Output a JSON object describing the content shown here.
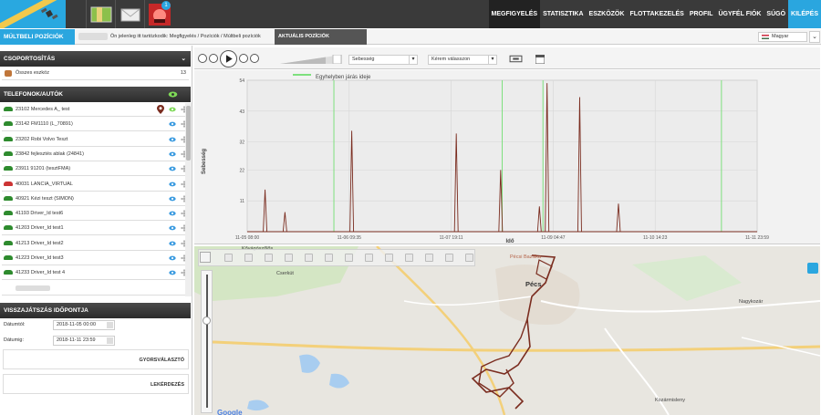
{
  "topbar": {
    "notification_count": "1",
    "nav": [
      "MEGFIGYELÉS",
      "STATISZTIKA",
      "ESZKÖZÖK",
      "FLOTTAKEZELÉS",
      "PROFIL",
      "ÜGYFÉL FIÓK",
      "SÚGÓ",
      "KILÉPÉS"
    ]
  },
  "crumbbar": {
    "title": "MÚLTBELI POZÍCIÓK",
    "breadcrumb": "Ön jelenleg itt tartózkodik: Megfigyelés / Pozíciók / Múltbeli pozíciók",
    "tab": "AKTUÁLIS POZÍCIÓK MEGJELENÍTÉSE...",
    "language": "Magyar"
  },
  "grouping": {
    "title": "CSOPORTOSÍTÁS",
    "all_label": "Összes eszköz",
    "all_count": "13"
  },
  "vehicles": {
    "title": "TELEFONOK/AUTÓK",
    "items": [
      {
        "label": "23102 Mercedes A_ test"
      },
      {
        "label": "23142 FM1110 (L_70891)"
      },
      {
        "label": "23202 Robi Volvo Teszt"
      },
      {
        "label": "23842 fejlesztés ablak (24841)"
      },
      {
        "label": "23911 91201 (tesztFMA)"
      },
      {
        "label": "40031 LANCIA_VIRTUAL"
      },
      {
        "label": "40921 Kézi teszt (SIMON)"
      },
      {
        "label": "41193 Driver_Id test6"
      },
      {
        "label": "41203 Driver_Id test1"
      },
      {
        "label": "41213 Driver_Id test2"
      },
      {
        "label": "41223 Driver_Id test3"
      },
      {
        "label": "41233 Driver_Id test 4"
      }
    ]
  },
  "replay": {
    "title": "VISSZAJÁTSZÁS IDŐPONTJA",
    "from_label": "Dátumtól:",
    "from_value": "2018-11-05 00:00",
    "to_label": "Dátumig:",
    "to_value": "2018-11-11 23:59",
    "quick_select": "GYORSVÁLASZTÓ",
    "query": "LEKÉRDEZÉS"
  },
  "toolbar": {
    "speed_select": "Sebesség",
    "choose_select": "Kérem válasszon"
  },
  "chart_data": {
    "type": "bar",
    "legend": "Egyhelyben járás ideje",
    "ylabel": "Sebesség",
    "xlabel": "Idő",
    "yticks": [
      11,
      22,
      32,
      43,
      54
    ],
    "ylim": [
      0,
      54
    ],
    "xticks": [
      "11-05 08:00",
      "11-06 09:35",
      "11-07 19:11",
      "11-09 04:47",
      "11-10 14:23",
      "11-11 23:59"
    ],
    "speed_spikes": [
      {
        "x": 0.035,
        "y": 15
      },
      {
        "x": 0.074,
        "y": 7
      },
      {
        "x": 0.205,
        "y": 36
      },
      {
        "x": 0.41,
        "y": 35
      },
      {
        "x": 0.497,
        "y": 22
      },
      {
        "x": 0.573,
        "y": 9
      },
      {
        "x": 0.588,
        "y": 53
      },
      {
        "x": 0.652,
        "y": 48
      },
      {
        "x": 0.728,
        "y": 10
      }
    ],
    "idle_markers": [
      0.17,
      0.5,
      0.58,
      0.93
    ],
    "colors": {
      "speed": "#7a2c1f",
      "idle": "#7ee07e"
    }
  },
  "map": {
    "labels": [
      "Cserkút",
      "Pécsi Bazilika",
      "Pécs",
      "Nagykozár",
      "Kozármisleny",
      "Kővágószőlős"
    ]
  }
}
